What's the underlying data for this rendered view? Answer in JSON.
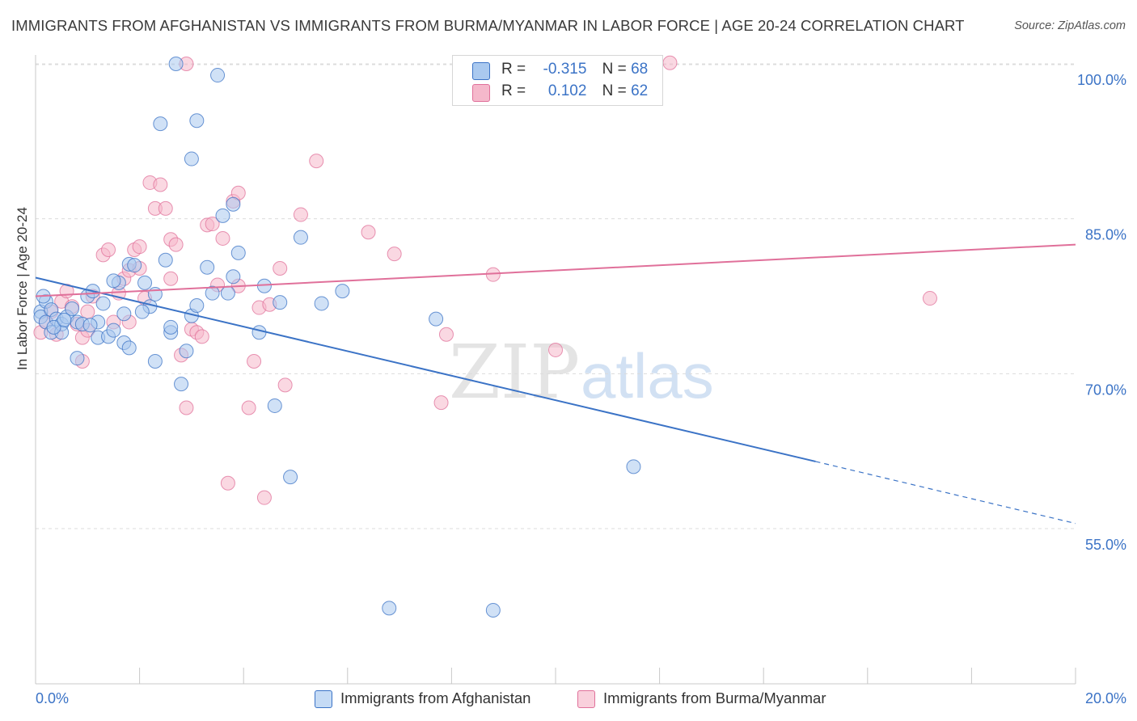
{
  "title": "IMMIGRANTS FROM AFGHANISTAN VS IMMIGRANTS FROM BURMA/MYANMAR IN LABOR FORCE | AGE 20-24 CORRELATION CHART",
  "source": "Source: ZipAtlas.com",
  "legend": {
    "r_label": "R =",
    "n_label": "N =",
    "series1": {
      "r": "-0.315",
      "n": "68"
    },
    "series2": {
      "r": "0.102",
      "n": "62"
    }
  },
  "colors": {
    "blue": "#3b73c6",
    "pink": "#e0709a",
    "blue_fill": "#aac9ef",
    "pink_fill": "#f5b8cb"
  },
  "chart_data": {
    "type": "scatter",
    "ylabel": "In Labor Force | Age 20-24",
    "xlim": [
      0,
      20
    ],
    "ylim": [
      40,
      102
    ],
    "x_tick_labels": [
      "0.0%",
      "20.0%"
    ],
    "y_ticks": [
      55,
      70,
      85,
      100
    ],
    "y_tick_labels": [
      "55.0%",
      "70.0%",
      "85.0%",
      "100.0%"
    ],
    "grid": true,
    "series": [
      {
        "name": "Immigrants from Afghanistan",
        "color": "#3b73c6",
        "trend": {
          "x0": 0,
          "y0": 79.3,
          "x1": 15,
          "y1": 61.5,
          "dash_to_x": 20,
          "dash_to_y": 55.5
        },
        "points": [
          [
            0.1,
            76.0
          ],
          [
            0.1,
            75.5
          ],
          [
            0.2,
            77.0
          ],
          [
            0.2,
            75.0
          ],
          [
            0.3,
            76.2
          ],
          [
            0.3,
            74.0
          ],
          [
            0.4,
            75.3
          ],
          [
            0.5,
            74.8
          ],
          [
            0.5,
            74.0
          ],
          [
            0.6,
            75.5
          ],
          [
            0.7,
            76.3
          ],
          [
            0.8,
            75.0
          ],
          [
            0.8,
            71.5
          ],
          [
            0.9,
            74.8
          ],
          [
            1.0,
            77.5
          ],
          [
            1.1,
            78.0
          ],
          [
            1.2,
            75.0
          ],
          [
            1.2,
            73.5
          ],
          [
            1.3,
            76.8
          ],
          [
            1.4,
            73.6
          ],
          [
            1.5,
            74.2
          ],
          [
            1.6,
            78.8
          ],
          [
            1.7,
            75.8
          ],
          [
            1.7,
            73.0
          ],
          [
            1.8,
            80.6
          ],
          [
            1.8,
            72.5
          ],
          [
            1.9,
            80.5
          ],
          [
            2.1,
            78.8
          ],
          [
            2.2,
            76.5
          ],
          [
            2.3,
            77.7
          ],
          [
            2.3,
            71.2
          ],
          [
            2.4,
            94.2
          ],
          [
            2.5,
            81.0
          ],
          [
            2.6,
            74.0
          ],
          [
            2.6,
            74.5
          ],
          [
            2.7,
            100.0
          ],
          [
            2.8,
            69.0
          ],
          [
            2.9,
            72.2
          ],
          [
            3.0,
            90.8
          ],
          [
            3.0,
            75.6
          ],
          [
            3.1,
            94.5
          ],
          [
            3.1,
            76.6
          ],
          [
            3.3,
            80.3
          ],
          [
            3.4,
            77.8
          ],
          [
            3.5,
            98.9
          ],
          [
            3.6,
            85.3
          ],
          [
            3.7,
            77.8
          ],
          [
            3.8,
            86.4
          ],
          [
            3.8,
            79.4
          ],
          [
            3.9,
            81.7
          ],
          [
            4.3,
            74.0
          ],
          [
            4.4,
            78.5
          ],
          [
            4.7,
            76.9
          ],
          [
            4.6,
            66.9
          ],
          [
            4.9,
            60.0
          ],
          [
            5.1,
            83.2
          ],
          [
            5.5,
            76.8
          ],
          [
            5.9,
            78.0
          ],
          [
            6.8,
            47.3
          ],
          [
            7.7,
            75.3
          ],
          [
            8.8,
            47.1
          ],
          [
            11.5,
            61.0
          ],
          [
            0.15,
            77.5
          ],
          [
            0.35,
            74.5
          ],
          [
            0.55,
            75.2
          ],
          [
            1.05,
            74.7
          ],
          [
            1.5,
            79.0
          ],
          [
            2.05,
            76.0
          ]
        ]
      },
      {
        "name": "Immigrants from Burma/Myanmar",
        "color": "#e0709a",
        "trend": {
          "x0": 0,
          "y0": 77.5,
          "x1": 20,
          "y1": 82.5
        },
        "points": [
          [
            0.1,
            74.0
          ],
          [
            0.2,
            75.0
          ],
          [
            0.3,
            76.0
          ],
          [
            0.4,
            73.8
          ],
          [
            0.5,
            77.0
          ],
          [
            0.6,
            78.0
          ],
          [
            0.7,
            76.5
          ],
          [
            0.8,
            74.8
          ],
          [
            0.9,
            73.5
          ],
          [
            0.9,
            71.2
          ],
          [
            1.0,
            76.0
          ],
          [
            1.0,
            74.2
          ],
          [
            1.1,
            77.5
          ],
          [
            1.3,
            81.5
          ],
          [
            1.4,
            82.0
          ],
          [
            1.5,
            75.0
          ],
          [
            1.6,
            77.8
          ],
          [
            1.7,
            79.2
          ],
          [
            1.8,
            80.0
          ],
          [
            1.8,
            75.0
          ],
          [
            1.9,
            82.0
          ],
          [
            2.0,
            82.3
          ],
          [
            2.0,
            80.2
          ],
          [
            2.1,
            77.3
          ],
          [
            2.2,
            88.5
          ],
          [
            2.3,
            86.0
          ],
          [
            2.4,
            88.3
          ],
          [
            2.5,
            86.0
          ],
          [
            2.6,
            79.2
          ],
          [
            2.6,
            83.0
          ],
          [
            2.7,
            82.5
          ],
          [
            2.8,
            71.8
          ],
          [
            2.9,
            66.7
          ],
          [
            2.9,
            100.0
          ],
          [
            3.0,
            74.3
          ],
          [
            3.1,
            74.0
          ],
          [
            3.2,
            73.6
          ],
          [
            3.3,
            84.4
          ],
          [
            3.4,
            84.5
          ],
          [
            3.5,
            78.6
          ],
          [
            3.6,
            83.1
          ],
          [
            3.7,
            59.4
          ],
          [
            3.8,
            86.7
          ],
          [
            3.9,
            78.5
          ],
          [
            3.9,
            87.5
          ],
          [
            4.1,
            66.7
          ],
          [
            4.2,
            71.2
          ],
          [
            4.3,
            76.4
          ],
          [
            4.4,
            58.0
          ],
          [
            4.5,
            76.7
          ],
          [
            4.7,
            80.2
          ],
          [
            4.8,
            68.9
          ],
          [
            5.1,
            85.4
          ],
          [
            5.4,
            90.6
          ],
          [
            6.4,
            83.7
          ],
          [
            6.9,
            81.6
          ],
          [
            7.8,
            67.2
          ],
          [
            7.9,
            73.8
          ],
          [
            8.8,
            79.6
          ],
          [
            10.0,
            72.3
          ],
          [
            12.2,
            100.1
          ],
          [
            17.2,
            77.3
          ]
        ]
      }
    ]
  },
  "bottom_legend": {
    "series1": "Immigrants from Afghanistan",
    "series2": "Immigrants from Burma/Myanmar"
  },
  "watermark": {
    "part1": "ZIP",
    "part2": "atlas"
  }
}
